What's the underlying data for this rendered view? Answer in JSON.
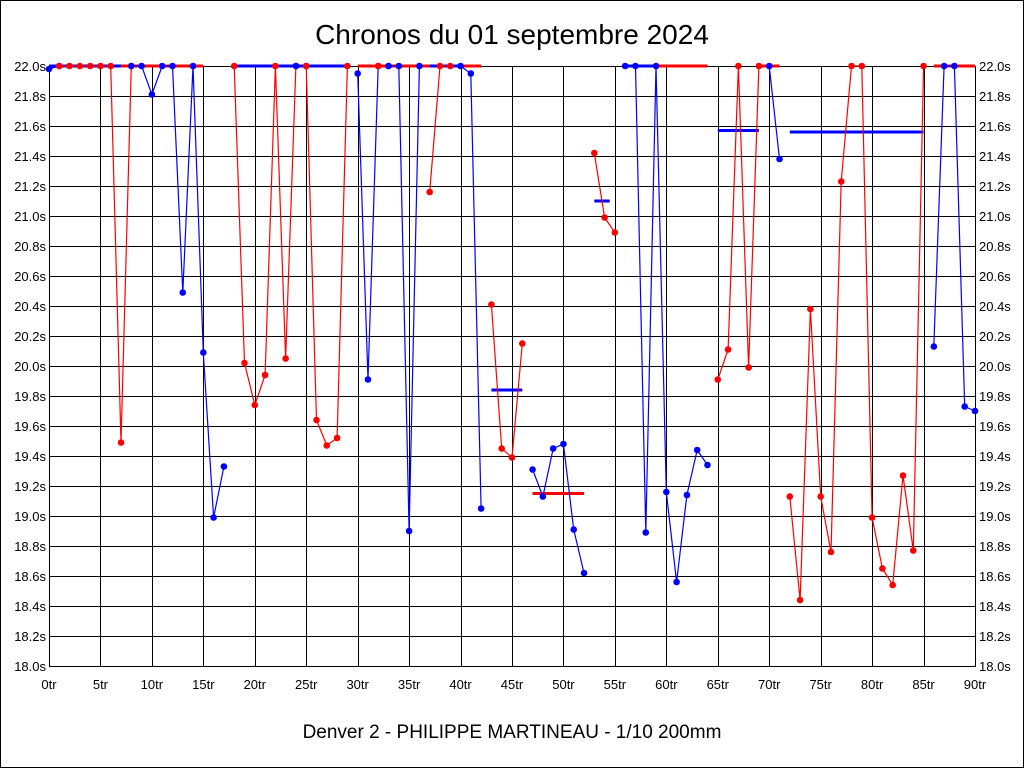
{
  "chart_data": {
    "type": "line",
    "title": "Chronos du 01 septembre 2024",
    "subtitle": "Denver 2 - PHILIPPE MARTINEAU - 1/10 200mm",
    "xlabel": "",
    "ylabel": "",
    "xlim": [
      0,
      90
    ],
    "ylim": [
      18.0,
      22.0
    ],
    "grid": true,
    "x_ticks": [
      "0tr",
      "5tr",
      "10tr",
      "15tr",
      "20tr",
      "25tr",
      "30tr",
      "35tr",
      "40tr",
      "45tr",
      "50tr",
      "55tr",
      "60tr",
      "65tr",
      "70tr",
      "75tr",
      "80tr",
      "85tr",
      "90tr"
    ],
    "y_ticks": [
      "18.0s",
      "18.2s",
      "18.4s",
      "18.6s",
      "18.8s",
      "19.0s",
      "19.2s",
      "19.4s",
      "19.6s",
      "19.8s",
      "20.0s",
      "20.2s",
      "20.4s",
      "20.6s",
      "20.8s",
      "21.0s",
      "21.2s",
      "21.4s",
      "21.6s",
      "21.8s",
      "22.0s"
    ],
    "colors": {
      "red": "#ff0000",
      "blue": "#0000ff"
    },
    "segments": [
      {
        "color": "blue",
        "points": [
          [
            0,
            21.98
          ],
          [
            1,
            22.0
          ]
        ]
      },
      {
        "color": "red",
        "points": [
          [
            1,
            22.0
          ],
          [
            2,
            22.0
          ],
          [
            3,
            22.0
          ],
          [
            4,
            22.0
          ],
          [
            5,
            22.0
          ],
          [
            6,
            22.0
          ],
          [
            7,
            19.49
          ],
          [
            8,
            22.0
          ]
        ]
      },
      {
        "color": "blue",
        "points": [
          [
            8,
            22.0
          ],
          [
            9,
            22.0
          ],
          [
            10,
            21.81
          ],
          [
            11,
            22.0
          ],
          [
            12,
            22.0
          ],
          [
            13,
            20.49
          ],
          [
            14,
            22.0
          ],
          [
            15,
            20.09
          ],
          [
            16,
            18.99
          ],
          [
            17,
            19.33
          ]
        ]
      },
      {
        "color": "red",
        "points": [
          [
            18,
            22.0
          ],
          [
            19,
            20.02
          ],
          [
            20,
            19.74
          ],
          [
            21,
            19.94
          ],
          [
            22,
            22.0
          ],
          [
            23,
            20.05
          ],
          [
            24,
            22.0
          ]
        ]
      },
      {
        "color": "blue",
        "points": [
          [
            24,
            22.0
          ],
          [
            25,
            22.0
          ]
        ]
      },
      {
        "color": "red",
        "points": [
          [
            25,
            22.0
          ],
          [
            26,
            19.64
          ],
          [
            27,
            19.47
          ],
          [
            28,
            19.52
          ],
          [
            29,
            22.0
          ]
        ]
      },
      {
        "color": "blue",
        "points": [
          [
            30,
            21.95
          ],
          [
            31,
            19.91
          ],
          [
            32,
            22.0
          ]
        ]
      },
      {
        "color": "red",
        "points": [
          [
            32,
            22.0
          ],
          [
            33,
            22.0
          ]
        ]
      },
      {
        "color": "blue",
        "points": [
          [
            33,
            22.0
          ],
          [
            34,
            22.0
          ],
          [
            35,
            18.9
          ],
          [
            36,
            22.0
          ]
        ]
      },
      {
        "color": "red",
        "points": [
          [
            37,
            21.16
          ],
          [
            38,
            22.0
          ],
          [
            39,
            22.0
          ]
        ]
      },
      {
        "color": "blue",
        "points": [
          [
            40,
            22.0
          ],
          [
            41,
            21.95
          ],
          [
            42,
            19.05
          ]
        ]
      },
      {
        "color": "red",
        "points": [
          [
            43,
            20.41
          ],
          [
            44,
            19.45
          ],
          [
            45,
            19.39
          ],
          [
            46,
            20.15
          ]
        ]
      },
      {
        "color": "blue",
        "points": [
          [
            47,
            19.31
          ],
          [
            48,
            19.13
          ],
          [
            49,
            19.45
          ],
          [
            50,
            19.48
          ],
          [
            51,
            18.91
          ],
          [
            52,
            18.62
          ]
        ]
      },
      {
        "color": "red",
        "points": [
          [
            53,
            21.42
          ],
          [
            54,
            20.99
          ],
          [
            55,
            20.89
          ]
        ]
      },
      {
        "color": "blue",
        "points": [
          [
            56,
            22.0
          ],
          [
            57,
            22.0
          ],
          [
            58,
            18.89
          ],
          [
            59,
            22.0
          ],
          [
            60,
            19.16
          ],
          [
            61,
            18.56
          ],
          [
            62,
            19.14
          ],
          [
            63,
            19.44
          ],
          [
            64,
            19.34
          ]
        ]
      },
      {
        "color": "red",
        "points": [
          [
            65,
            19.91
          ],
          [
            66,
            20.11
          ],
          [
            67,
            22.0
          ],
          [
            68,
            19.99
          ],
          [
            69,
            22.0
          ]
        ]
      },
      {
        "color": "blue",
        "points": [
          [
            70,
            22.0
          ],
          [
            71,
            21.38
          ]
        ]
      },
      {
        "color": "red",
        "points": [
          [
            72,
            19.13
          ],
          [
            73,
            18.44
          ],
          [
            74,
            20.38
          ],
          [
            75,
            19.13
          ],
          [
            76,
            18.76
          ],
          [
            77,
            21.23
          ],
          [
            78,
            22.0
          ],
          [
            79,
            22.0
          ],
          [
            80,
            18.99
          ],
          [
            81,
            18.65
          ],
          [
            82,
            18.54
          ],
          [
            83,
            19.27
          ],
          [
            84,
            18.77
          ],
          [
            85,
            22.0
          ]
        ]
      },
      {
        "color": "blue",
        "points": [
          [
            86,
            20.13
          ],
          [
            87,
            22.0
          ],
          [
            88,
            22.0
          ],
          [
            89,
            19.73
          ],
          [
            90,
            19.7
          ]
        ]
      }
    ],
    "average_lines": [
      {
        "color": "blue",
        "from": 0,
        "to": 7,
        "value": 22.0
      },
      {
        "color": "red",
        "from": 7,
        "to": 15,
        "value": 22.0
      },
      {
        "color": "blue",
        "from": 18,
        "to": 29,
        "value": 22.0
      },
      {
        "color": "red",
        "from": 30,
        "to": 37,
        "value": 22.0
      },
      {
        "color": "blue",
        "from": 37,
        "to": 40,
        "value": 22.0
      },
      {
        "color": "red",
        "from": 40,
        "to": 42,
        "value": 22.0
      },
      {
        "color": "blue",
        "from": 43,
        "to": 46,
        "value": 19.84
      },
      {
        "color": "red",
        "from": 47,
        "to": 52,
        "value": 19.15
      },
      {
        "color": "blue",
        "from": 53,
        "to": 54.5,
        "value": 21.1
      },
      {
        "color": "blue",
        "from": 56,
        "to": 59,
        "value": 22.0
      },
      {
        "color": "red",
        "from": 59,
        "to": 64,
        "value": 22.0
      },
      {
        "color": "blue",
        "from": 65,
        "to": 69,
        "value": 21.57
      },
      {
        "color": "red",
        "from": 69,
        "to": 71,
        "value": 22.0
      },
      {
        "color": "blue",
        "from": 72,
        "to": 85,
        "value": 21.56
      },
      {
        "color": "red",
        "from": 86,
        "to": 90,
        "value": 22.0
      }
    ]
  }
}
